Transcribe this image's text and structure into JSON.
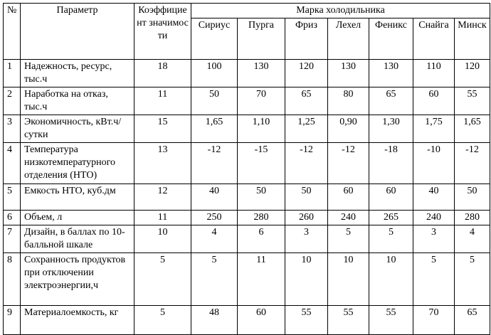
{
  "table": {
    "header": {
      "num": "№",
      "param": "Параметр",
      "coef": "Коэффициент значимости",
      "brand_group": "Марка холодильника",
      "brands": [
        "Сириус",
        "Пурга",
        "Фриз",
        "Лехел",
        "Феникс",
        "Снайга",
        "Минск"
      ]
    },
    "rows": [
      [
        "1",
        "Надежность, ресурс, тыс.ч",
        "18",
        "100",
        "130",
        "120",
        "130",
        "130",
        "110",
        "120"
      ],
      [
        "2",
        "Наработка на отказ, тыс.ч",
        "11",
        "50",
        "70",
        "65",
        "80",
        "65",
        "60",
        "55"
      ],
      [
        "3",
        "Экономичность, кВт.ч/сутки",
        "15",
        "1,65",
        "1,10",
        "1,25",
        "0,90",
        "1,30",
        "1,75",
        "1,65"
      ],
      [
        "4",
        "Температура низкотемпературного отделения (НТО)",
        "13",
        "-12",
        "-15",
        "-12",
        "-12",
        "-18",
        "-10",
        "-12"
      ],
      [
        "5",
        "Емкость НТО, куб.дм",
        "12",
        "40",
        "50",
        "50",
        "60",
        "60",
        "40",
        "50"
      ],
      [
        "6",
        "Объем, л",
        "11",
        "250",
        "280",
        "260",
        "240",
        "265",
        "240",
        "280"
      ],
      [
        "7",
        "Дизайн, в баллах по 10-балльной шкале",
        "10",
        "4",
        "6",
        "3",
        "5",
        "5",
        "3",
        "4"
      ],
      [
        "8",
        "Сохранность продуктов при отключении электроэнергии,ч",
        "5",
        "5",
        "11",
        "10",
        "10",
        "10",
        "5",
        "5"
      ],
      [
        "9",
        "Материалоемкость, кг",
        "5",
        "48",
        "60",
        "55",
        "55",
        "55",
        "70",
        "65"
      ]
    ]
  }
}
